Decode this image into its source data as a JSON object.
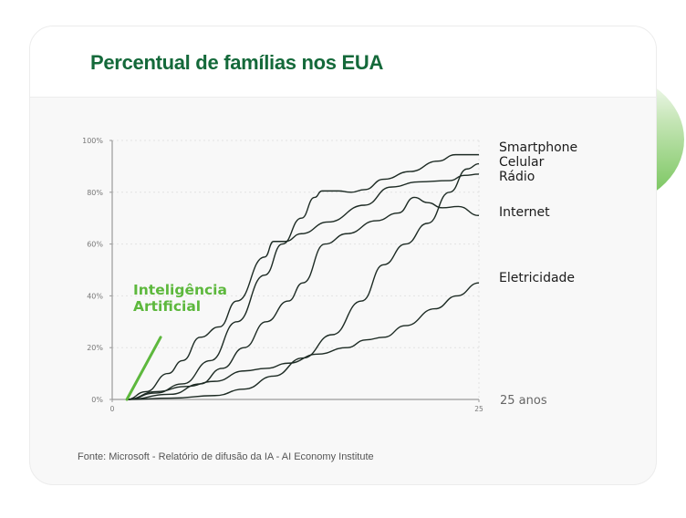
{
  "title": "Percentual de famílias nos EUA",
  "footer": "Fonte: Microsoft - Relatório de difusão da IA - AI Economy Institute",
  "colors": {
    "title": "#14693a",
    "ai_line": "#5db83d",
    "series_line": "#1d2b24",
    "grid": "#e2e2e2",
    "axis": "#9a9a9a"
  },
  "chart_data": {
    "type": "line",
    "title": "Percentual de famílias nos EUA",
    "xlabel": "",
    "ylabel": "",
    "xlim": [
      0,
      25
    ],
    "ylim": [
      0,
      100
    ],
    "x_ticks": [
      0,
      25
    ],
    "y_ticks": [
      0,
      20,
      40,
      60,
      80,
      100
    ],
    "y_tick_labels": [
      "0%",
      "20%",
      "40%",
      "60%",
      "80%",
      "100%"
    ],
    "x_end_label": "25 anos",
    "grid": true,
    "series": [
      {
        "name": "Smartphone",
        "points": [
          [
            1,
            0
          ],
          [
            3,
            2.5
          ],
          [
            4.8,
            6
          ],
          [
            6.7,
            15
          ],
          [
            8.5,
            30
          ],
          [
            10.4,
            48
          ],
          [
            11.6,
            60
          ],
          [
            12.9,
            70
          ],
          [
            13.8,
            78
          ],
          [
            14.3,
            80.5
          ],
          [
            15.4,
            80.5
          ],
          [
            16.3,
            80
          ],
          [
            17.2,
            81
          ],
          [
            18.5,
            85
          ],
          [
            20.3,
            88
          ],
          [
            22.2,
            92
          ],
          [
            23.4,
            94.5
          ],
          [
            25,
            94.5
          ]
        ]
      },
      {
        "name": "Celular",
        "points": [
          [
            1,
            0
          ],
          [
            4,
            0.5
          ],
          [
            7,
            1.5
          ],
          [
            9,
            4
          ],
          [
            11,
            9
          ],
          [
            13,
            16
          ],
          [
            15,
            25
          ],
          [
            17,
            38
          ],
          [
            18.5,
            52
          ],
          [
            20,
            60
          ],
          [
            21.5,
            68
          ],
          [
            23,
            80
          ],
          [
            24.2,
            89
          ],
          [
            25,
            91
          ]
        ]
      },
      {
        "name": "Rádio",
        "points": [
          [
            1,
            0
          ],
          [
            2.3,
            3
          ],
          [
            3.8,
            10
          ],
          [
            4.8,
            15
          ],
          [
            6,
            24
          ],
          [
            7.3,
            28
          ],
          [
            8.5,
            38
          ],
          [
            10.4,
            55
          ],
          [
            11,
            61
          ],
          [
            11.8,
            61
          ],
          [
            12.9,
            64
          ],
          [
            14.7,
            68.5
          ],
          [
            17.2,
            75
          ],
          [
            19,
            82
          ],
          [
            20.9,
            84
          ],
          [
            23,
            84.5
          ],
          [
            24,
            86.5
          ],
          [
            25,
            87
          ]
        ]
      },
      {
        "name": "Internet",
        "points": [
          [
            1,
            0
          ],
          [
            4,
            2
          ],
          [
            6,
            6
          ],
          [
            7.5,
            12
          ],
          [
            9,
            20
          ],
          [
            10.5,
            30
          ],
          [
            12,
            38
          ],
          [
            13,
            45
          ],
          [
            14.5,
            60
          ],
          [
            16,
            64
          ],
          [
            18,
            69
          ],
          [
            19.5,
            72
          ],
          [
            20.6,
            78
          ],
          [
            21.5,
            76
          ],
          [
            22.5,
            74
          ],
          [
            23.6,
            74.5
          ],
          [
            25,
            71
          ]
        ]
      },
      {
        "name": "Eletricidade",
        "points": [
          [
            1,
            0
          ],
          [
            3,
            3
          ],
          [
            5,
            5
          ],
          [
            7,
            7
          ],
          [
            9,
            11
          ],
          [
            10.5,
            12
          ],
          [
            12,
            14
          ],
          [
            14,
            17.5
          ],
          [
            16,
            20
          ],
          [
            17.3,
            23
          ],
          [
            18.5,
            24
          ],
          [
            20,
            28.5
          ],
          [
            22,
            35
          ],
          [
            23.5,
            40
          ],
          [
            25,
            45
          ]
        ]
      },
      {
        "name": "Inteligência Artificial",
        "points": [
          [
            1,
            0
          ],
          [
            3.3,
            24
          ]
        ]
      }
    ],
    "annotations": [
      "Inteligência",
      "Artificial"
    ]
  }
}
